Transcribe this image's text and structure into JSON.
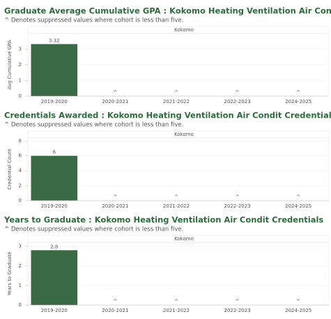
{
  "chart_data": [
    {
      "type": "bar",
      "title": "Graduate Average Cumulative GPA : Kokomo Heating Ventilation Air Condit Credentials",
      "subtitle": "^ Denotes suppressed values where cohort is less than five.",
      "facet": "Kokomo",
      "y_label": "Avg Cumulative GPA",
      "categories": [
        "2019-2020",
        "2020-2021",
        "2021-2022",
        "2022-2023",
        "2024-2025"
      ],
      "values": [
        3.32,
        null,
        null,
        null,
        null
      ],
      "value_labels": [
        "3.32",
        "^",
        "^",
        "^",
        "^"
      ],
      "color": "#3b6b44",
      "ylim": [
        0,
        4
      ],
      "yticks": [
        0,
        1,
        2,
        3
      ],
      "grid": true
    },
    {
      "type": "bar",
      "title": "Credentials Awarded : Kokomo Heating Ventilation Air Condit Credentials",
      "subtitle": "^ Denotes suppressed values where cohort is less than five.",
      "facet": "Kokomo",
      "y_label": "Credential Count",
      "categories": [
        "2019-2020",
        "2020-2021",
        "2021-2022",
        "2022-2023",
        "2024-2025"
      ],
      "values": [
        6,
        null,
        null,
        null,
        null
      ],
      "value_labels": [
        "6",
        "^",
        "^",
        "^",
        "^"
      ],
      "color": "#3b6b44",
      "ylim": [
        0,
        8.4
      ],
      "yticks": [
        0,
        2,
        4,
        6,
        8
      ],
      "grid": true
    },
    {
      "type": "bar",
      "title": "Years to Graduate : Kokomo Heating Ventilation Air Condit Credentials",
      "subtitle": "^ Denotes suppressed values where cohort is less than five.",
      "facet": "Kokomo",
      "y_label": "Years to Graduate",
      "categories": [
        "2019-2020",
        "2020-2021",
        "2021-2022",
        "2022-2023",
        "2024-2025"
      ],
      "values": [
        2.8,
        null,
        null,
        null,
        null
      ],
      "value_labels": [
        "2.8",
        "^",
        "^",
        "^",
        "^"
      ],
      "color": "#3b6b44",
      "ylim": [
        0,
        3.2
      ],
      "yticks": [
        0,
        1,
        2,
        3
      ],
      "grid": true
    }
  ]
}
